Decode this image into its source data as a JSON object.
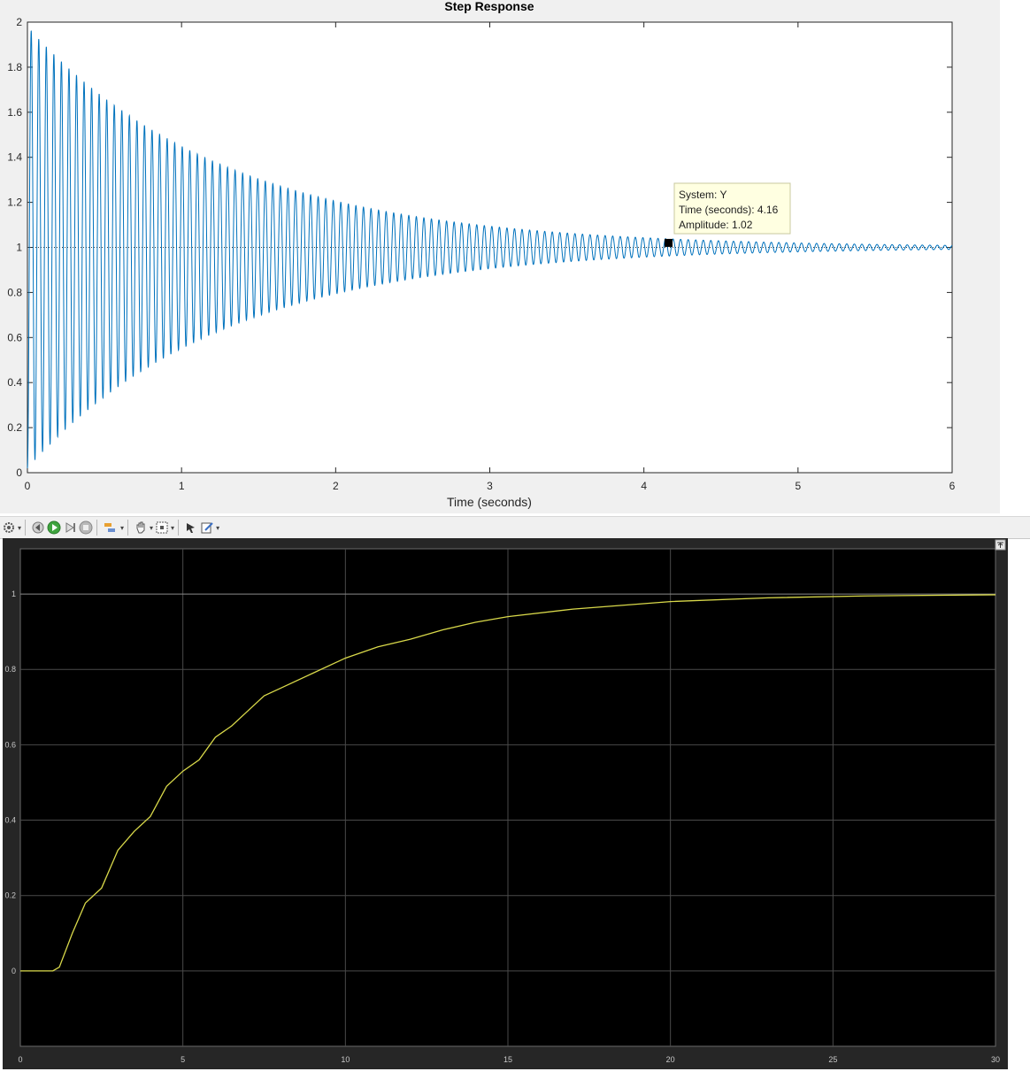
{
  "chart_data": [
    {
      "type": "line",
      "title": "Step Response",
      "xlabel": "Time (seconds)",
      "ylabel": "",
      "xlim": [
        0,
        6
      ],
      "ylim": [
        0,
        2
      ],
      "xticks": [
        "0",
        "1",
        "2",
        "3",
        "4",
        "5",
        "6"
      ],
      "yticks": [
        "0",
        "0.2",
        "0.4",
        "0.6",
        "0.8",
        "1",
        "1.2",
        "1.4",
        "1.6",
        "1.8",
        "2"
      ],
      "grid": false,
      "final_value_line": 1,
      "series": [
        {
          "color": "#0072BD",
          "description_params": {
            "final_value": 1,
            "initial_peak": 1.98,
            "decay_rate": 0.78,
            "oscillation_period": 0.049
          },
          "envelope_samples": {
            "t": [
              0,
              0.5,
              1,
              1.5,
              2,
              2.5,
              3,
              3.5,
              4,
              4.16,
              5,
              6
            ],
            "upper": [
              1.98,
              1.66,
              1.45,
              1.31,
              1.2,
              1.13,
              1.09,
              1.06,
              1.03,
              1.02,
              1.01,
              1.005
            ],
            "lower": [
              0.02,
              0.34,
              0.55,
              0.69,
              0.8,
              0.87,
              0.91,
              0.94,
              0.97,
              0.98,
              0.99,
              0.995
            ]
          }
        }
      ],
      "datatip": {
        "system_label": "System: Y",
        "time_label": "Time (seconds): 4.16",
        "amplitude_label": "Amplitude: 1.02",
        "t": 4.16,
        "amplitude": 1.02
      }
    },
    {
      "type": "line",
      "title": "",
      "xlabel": "",
      "ylabel": "",
      "xlim": [
        0,
        30
      ],
      "ylim": [
        -0.2,
        1.12
      ],
      "xticks": [
        "0",
        "5",
        "10",
        "15",
        "20",
        "25",
        "30"
      ],
      "yticks": [
        "0",
        "0.2",
        "0.4",
        "0.6",
        "0.8",
        "1"
      ],
      "grid": true,
      "series": [
        {
          "color": "#d9d94a",
          "x": [
            0,
            1.0,
            1.2,
            1.6,
            2.0,
            2.5,
            3.0,
            3.5,
            4.0,
            4.5,
            5.0,
            5.5,
            6.0,
            6.5,
            7.0,
            7.5,
            8.0,
            9.0,
            10.0,
            11.0,
            12.0,
            13.0,
            14.0,
            15.0,
            17.0,
            20.0,
            23.0,
            26.0,
            30.0
          ],
          "values": [
            0,
            0,
            0.01,
            0.1,
            0.18,
            0.22,
            0.32,
            0.37,
            0.41,
            0.49,
            0.53,
            0.56,
            0.62,
            0.65,
            0.69,
            0.73,
            0.75,
            0.79,
            0.83,
            0.86,
            0.88,
            0.905,
            0.925,
            0.94,
            0.96,
            0.98,
            0.99,
            0.995,
            0.998
          ]
        }
      ],
      "reference_line": 1
    }
  ],
  "toolbar": {
    "icons": [
      "gear-icon",
      "step-back-icon",
      "run-icon",
      "step-forward-icon",
      "stop-icon",
      "highlight-icon",
      "pan-icon",
      "zoom-fit-icon",
      "cursor-icon",
      "edit-icon"
    ]
  },
  "colors": {
    "matlab_line": "#0072BD",
    "scope_line": "#d9d94a",
    "scope_bg": "#000000",
    "scope_frame": "#262626"
  }
}
